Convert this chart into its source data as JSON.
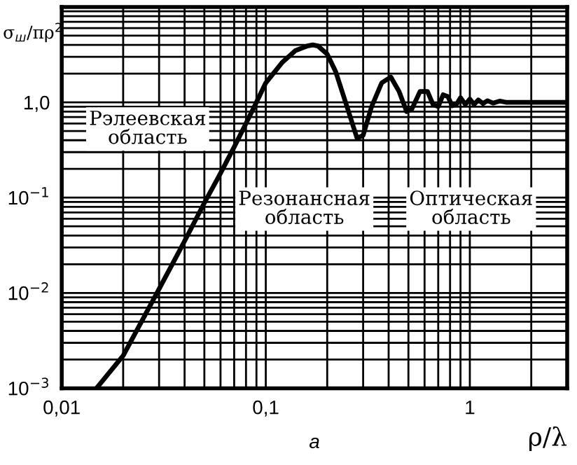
{
  "chart_data": {
    "type": "line",
    "ylabel": "σ$_{ш}$/πρ$^{2}$",
    "xlabel": "ρ/λ",
    "log": "xy",
    "xlim": [
      0.01,
      3
    ],
    "ylim": [
      0.001,
      10
    ],
    "xticks": [
      {
        "value": 0.01,
        "label": "0,01"
      },
      {
        "value": 0.1,
        "label": "0,1"
      },
      1
    ],
    "yticks": [
      {
        "value": 0.001,
        "label": "10$^{−3}$"
      },
      {
        "value": 0.01,
        "label": "10$^{−2}$"
      },
      {
        "value": 0.1,
        "label": "10$^{−1}$"
      },
      {
        "value": 1,
        "label": "1,0"
      }
    ],
    "grid": true,
    "annotations": [
      "Рэлеевская\nобласть",
      "Резонансная\nобласть",
      "Оптическая\nобласть",
      "a"
    ],
    "series": [
      {
        "color": "#000000",
        "x": [
          0.0148,
          0.02,
          0.03,
          0.04,
          0.05,
          0.06,
          0.07,
          0.08,
          0.09,
          0.1,
          0.12,
          0.14,
          0.16,
          0.17,
          0.18,
          0.2,
          0.22,
          0.25,
          0.28,
          0.3,
          0.33,
          0.37,
          0.41,
          0.45,
          0.49,
          0.52,
          0.57,
          0.62,
          0.66,
          0.7,
          0.74,
          0.78,
          0.82,
          0.86,
          0.9,
          0.95,
          1.0,
          1.05,
          1.1,
          1.16,
          1.22,
          1.3,
          1.4,
          1.5,
          1.7,
          2.0,
          2.5,
          3.0
        ],
        "values": [
          0.001,
          0.0022,
          0.011,
          0.035,
          0.088,
          0.18,
          0.34,
          0.6,
          1.0,
          1.6,
          2.6,
          3.5,
          3.9,
          4.0,
          3.9,
          3.2,
          2.1,
          0.9,
          0.42,
          0.45,
          0.9,
          1.6,
          1.84,
          1.3,
          0.8,
          0.85,
          1.3,
          1.3,
          0.95,
          0.9,
          1.2,
          1.15,
          0.92,
          0.95,
          1.12,
          0.95,
          1.08,
          0.95,
          1.06,
          0.97,
          1.04,
          0.98,
          1.03,
          1.0,
          1.0,
          1.0,
          1.0,
          1.0
        ]
      }
    ]
  }
}
